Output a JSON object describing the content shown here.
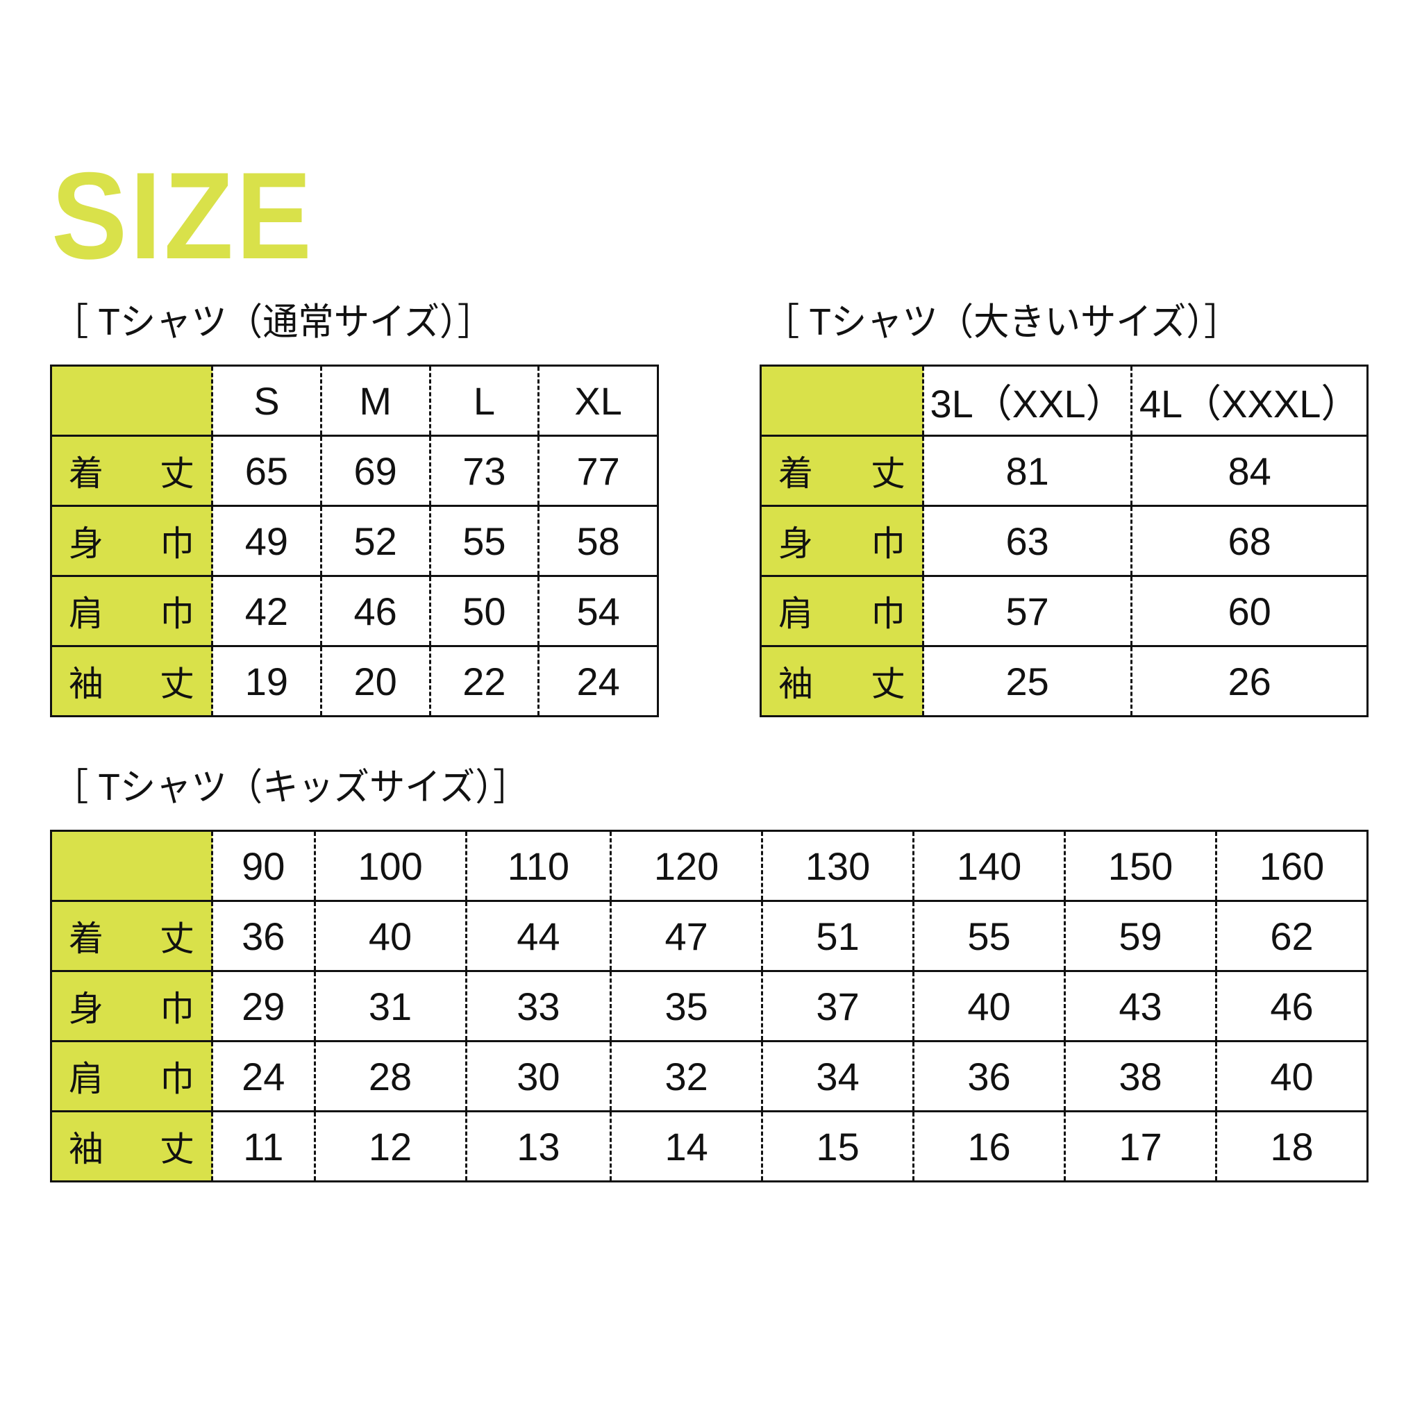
{
  "title": "SIZE",
  "colors": {
    "accent": "#d9e14a",
    "text": "#111111"
  },
  "regular": {
    "heading": "［ Tシャツ（通常サイズ）］",
    "columns": [
      "S",
      "M",
      "L",
      "XL"
    ],
    "rows": [
      {
        "label": [
          "着",
          "丈"
        ],
        "values": [
          "65",
          "69",
          "73",
          "77"
        ]
      },
      {
        "label": [
          "身",
          "巾"
        ],
        "values": [
          "49",
          "52",
          "55",
          "58"
        ]
      },
      {
        "label": [
          "肩",
          "巾"
        ],
        "values": [
          "42",
          "46",
          "50",
          "54"
        ]
      },
      {
        "label": [
          "袖",
          "丈"
        ],
        "values": [
          "19",
          "20",
          "22",
          "24"
        ]
      }
    ]
  },
  "large": {
    "heading": "［ Tシャツ（大きいサイズ）］",
    "columns": [
      "3L（XXL）",
      "4L（XXXL）"
    ],
    "rows": [
      {
        "label": [
          "着",
          "丈"
        ],
        "values": [
          "81",
          "84"
        ]
      },
      {
        "label": [
          "身",
          "巾"
        ],
        "values": [
          "63",
          "68"
        ]
      },
      {
        "label": [
          "肩",
          "巾"
        ],
        "values": [
          "57",
          "60"
        ]
      },
      {
        "label": [
          "袖",
          "丈"
        ],
        "values": [
          "25",
          "26"
        ]
      }
    ]
  },
  "kids": {
    "heading": "［ Tシャツ（キッズサイズ）］",
    "columns": [
      "90",
      "100",
      "110",
      "120",
      "130",
      "140",
      "150",
      "160"
    ],
    "rows": [
      {
        "label": [
          "着",
          "丈"
        ],
        "values": [
          "36",
          "40",
          "44",
          "47",
          "51",
          "55",
          "59",
          "62"
        ]
      },
      {
        "label": [
          "身",
          "巾"
        ],
        "values": [
          "29",
          "31",
          "33",
          "35",
          "37",
          "40",
          "43",
          "46"
        ]
      },
      {
        "label": [
          "肩",
          "巾"
        ],
        "values": [
          "24",
          "28",
          "30",
          "32",
          "34",
          "36",
          "38",
          "40"
        ]
      },
      {
        "label": [
          "袖",
          "丈"
        ],
        "values": [
          "11",
          "12",
          "13",
          "14",
          "15",
          "16",
          "17",
          "18"
        ]
      }
    ]
  }
}
